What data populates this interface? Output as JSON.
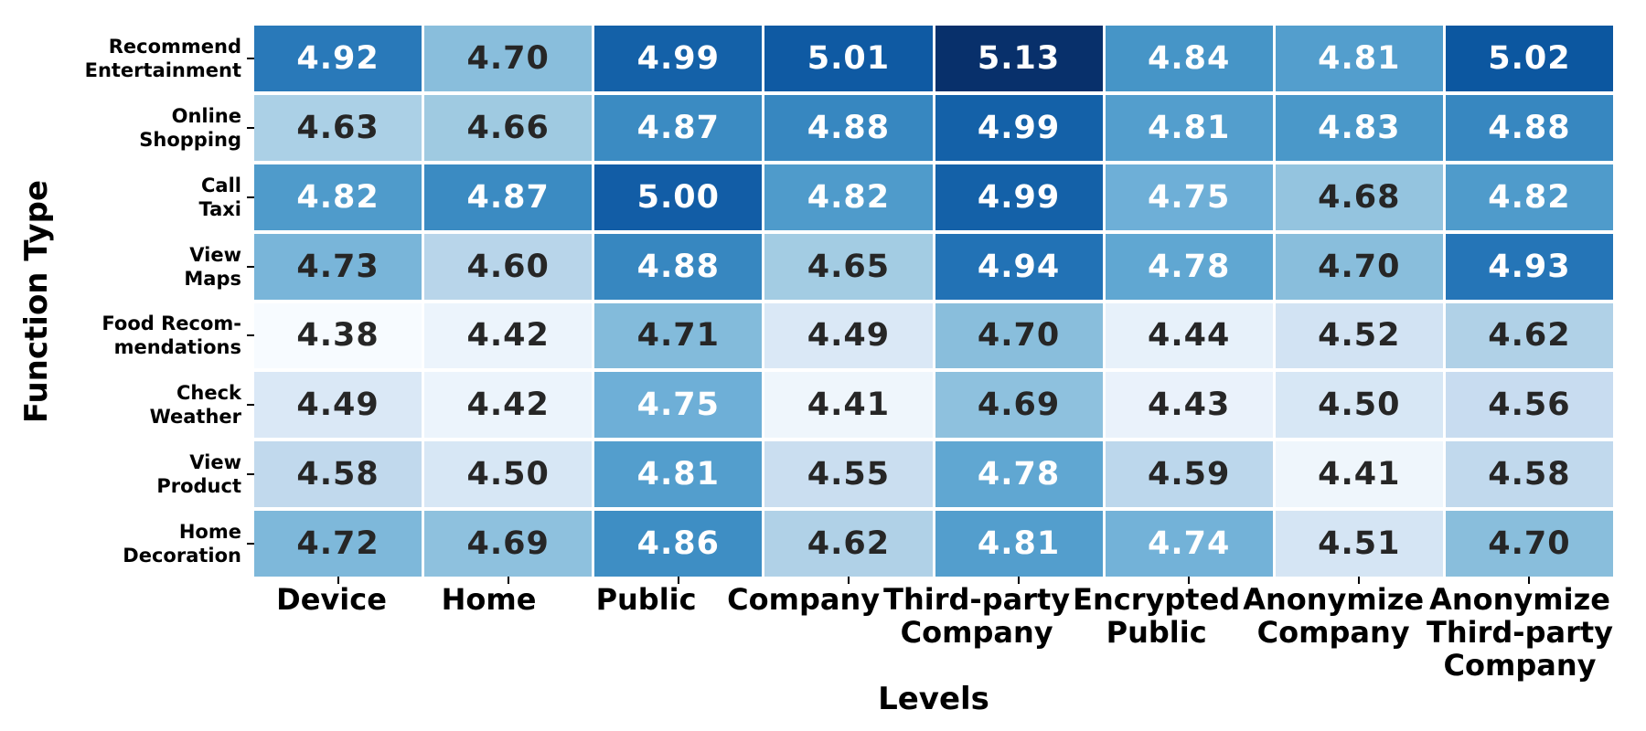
{
  "chart_data": {
    "type": "heatmap",
    "title": "",
    "xlabel": "Levels",
    "ylabel": "Function Type",
    "colorbar": false,
    "grid_line_color": "#ffffff",
    "colormap": "Blues",
    "colormap_stops": [
      "#f7fbff",
      "#deebf7",
      "#c6dbef",
      "#9ecae1",
      "#6baed6",
      "#4292c6",
      "#2171b5",
      "#08519c",
      "#08306b"
    ],
    "vmin": 4.38,
    "vmax": 5.13,
    "value_decimals": 2,
    "annotation_text_dark": "#262626",
    "annotation_text_light": "#ffffff",
    "x_tick_labels": [
      [
        "Device"
      ],
      [
        "Home"
      ],
      [
        "Public"
      ],
      [
        "Company"
      ],
      [
        "Third-party",
        "Company"
      ],
      [
        "Encrypted",
        "Public"
      ],
      [
        "Anonymize",
        "Company"
      ],
      [
        "Anonymize",
        "Third-party",
        "Company"
      ]
    ],
    "y_tick_labels": [
      [
        "Recommend",
        "Entertainment"
      ],
      [
        "Online",
        "Shopping"
      ],
      [
        "Call",
        "Taxi"
      ],
      [
        "View",
        "Maps"
      ],
      [
        "Food Recom-",
        "mendations"
      ],
      [
        "Check",
        "Weather"
      ],
      [
        "View",
        "Product"
      ],
      [
        "Home",
        "Decoration"
      ]
    ],
    "values": [
      [
        4.92,
        4.7,
        4.99,
        5.01,
        5.13,
        4.84,
        4.81,
        5.02
      ],
      [
        4.63,
        4.66,
        4.87,
        4.88,
        4.99,
        4.81,
        4.83,
        4.88
      ],
      [
        4.82,
        4.87,
        5.0,
        4.82,
        4.99,
        4.75,
        4.68,
        4.82
      ],
      [
        4.73,
        4.6,
        4.88,
        4.65,
        4.94,
        4.78,
        4.7,
        4.93
      ],
      [
        4.38,
        4.42,
        4.71,
        4.49,
        4.7,
        4.44,
        4.52,
        4.62
      ],
      [
        4.49,
        4.42,
        4.75,
        4.41,
        4.69,
        4.43,
        4.5,
        4.56
      ],
      [
        4.58,
        4.5,
        4.81,
        4.55,
        4.78,
        4.59,
        4.41,
        4.58
      ],
      [
        4.72,
        4.69,
        4.86,
        4.62,
        4.81,
        4.74,
        4.51,
        4.7
      ]
    ]
  }
}
